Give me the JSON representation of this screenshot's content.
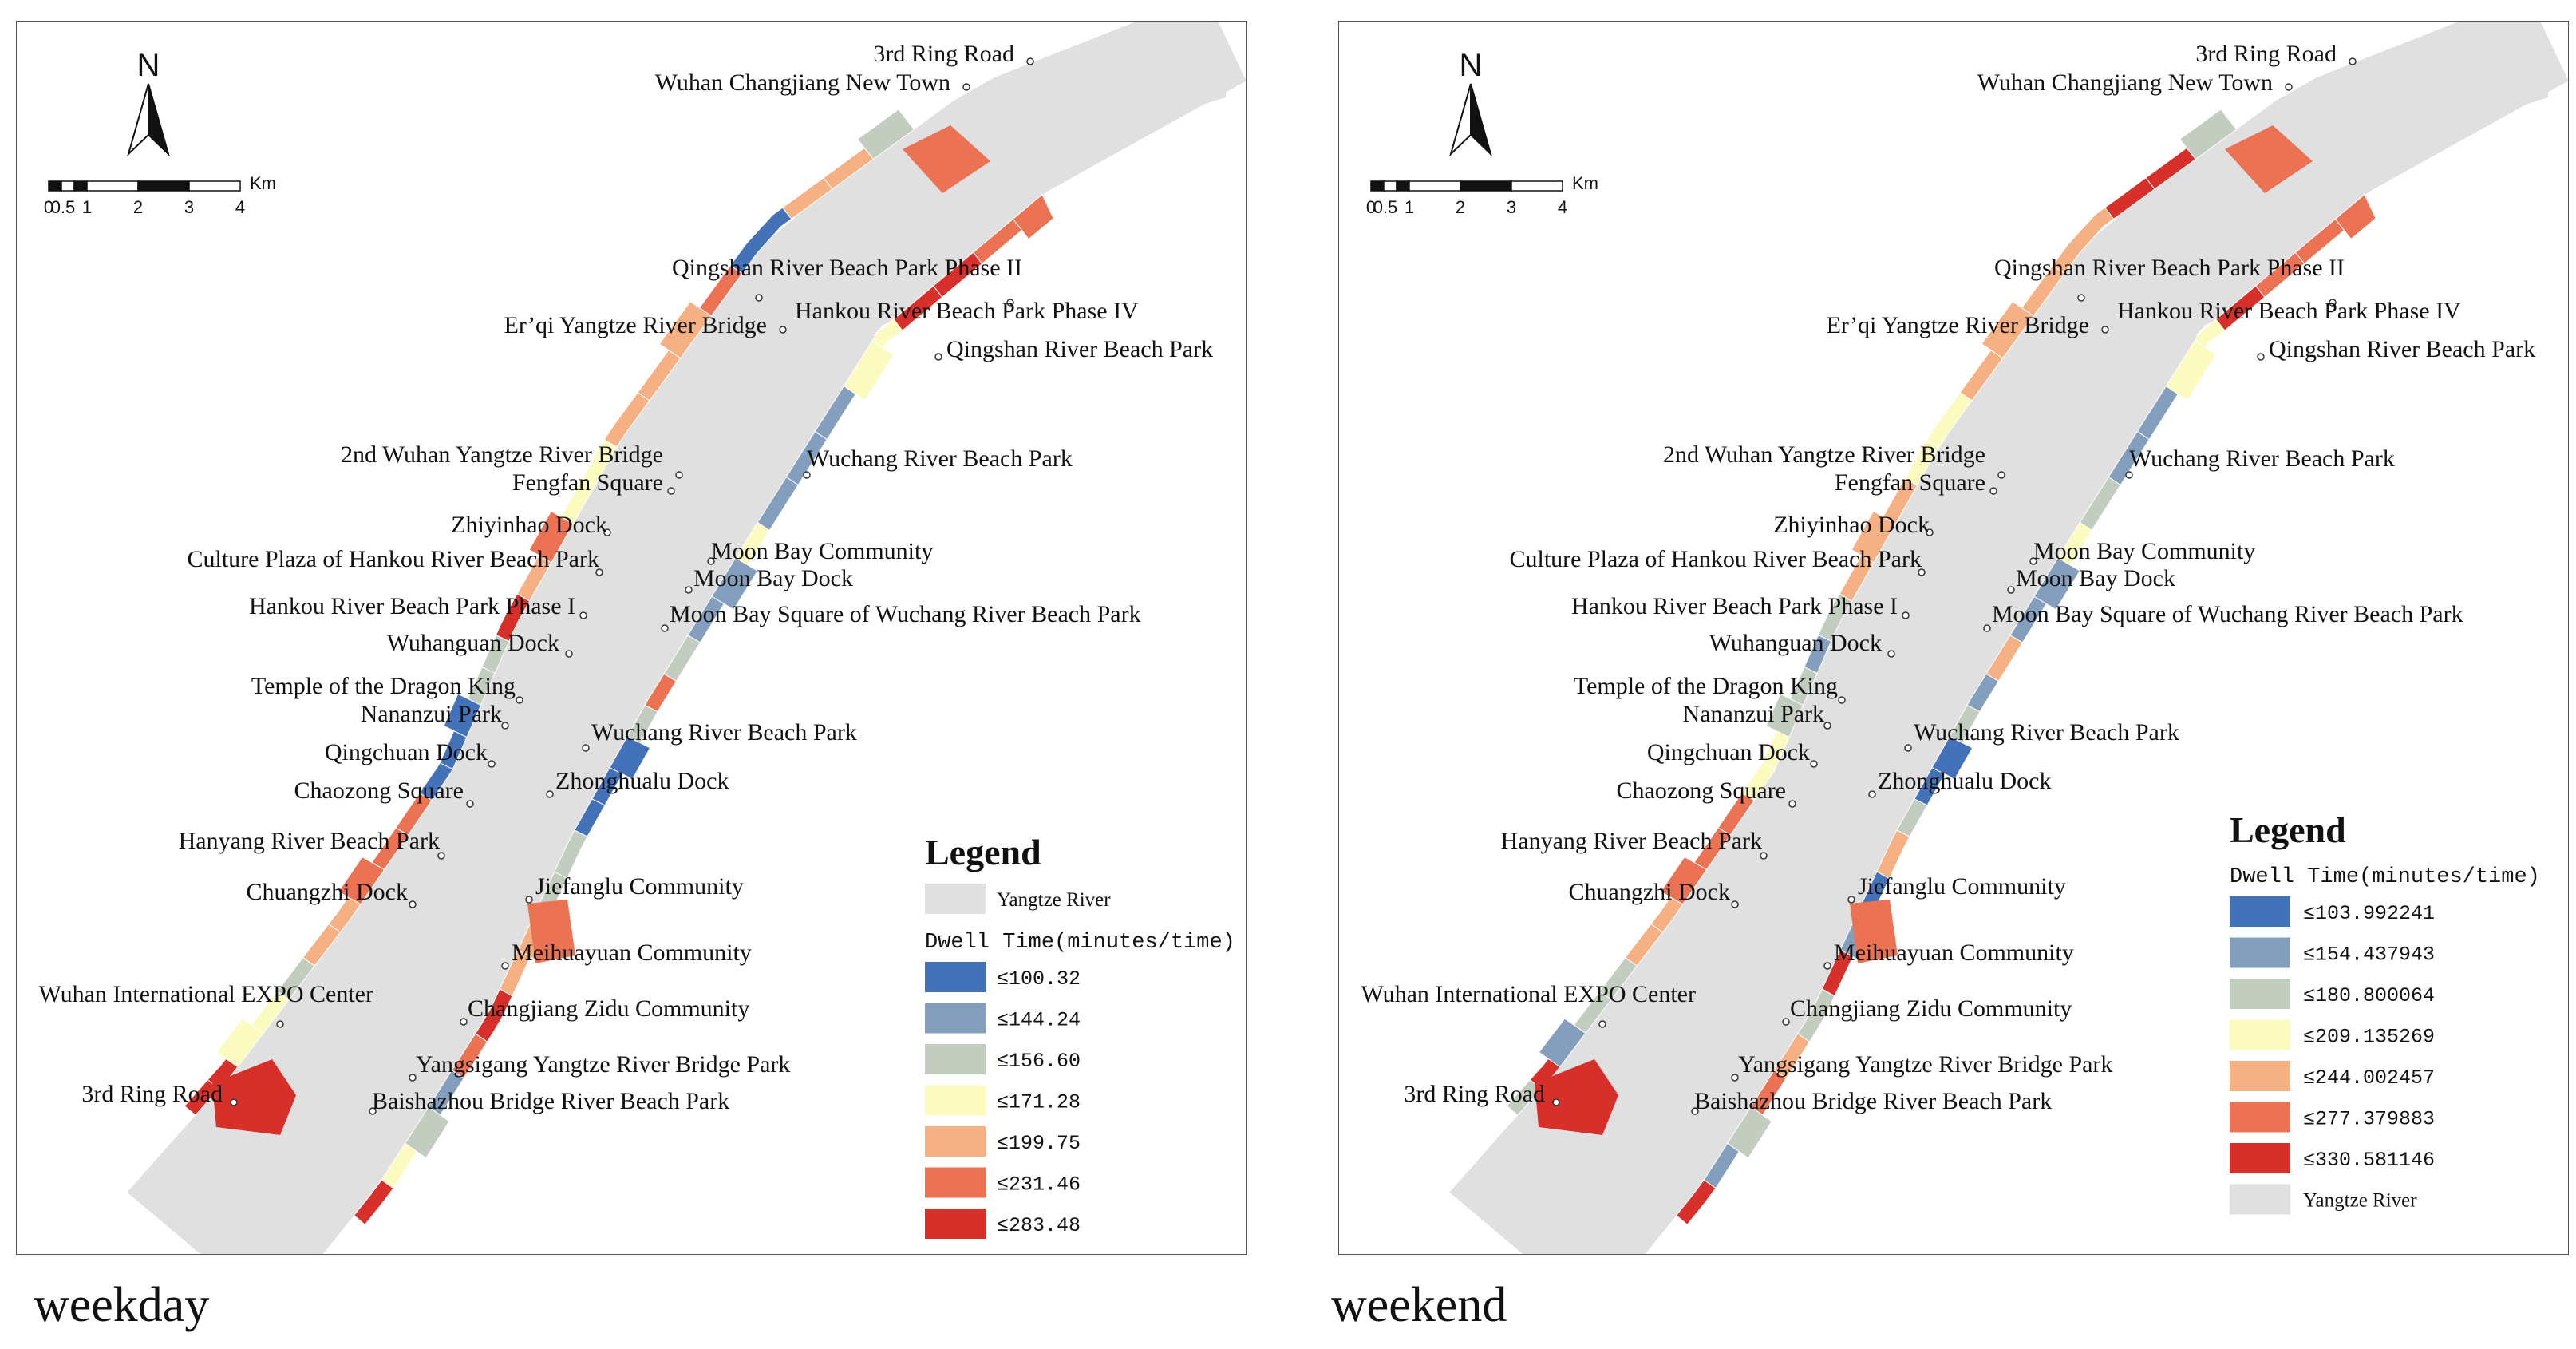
{
  "river_color": "#e0e0e0",
  "maps": [
    {
      "caption": "weekday",
      "legend": {
        "title": "Legend",
        "river_label": "Yangtze River",
        "subtitle": "Dwell Time(minutes/time)",
        "classes": [
          {
            "label": "≤100.32",
            "color": "#4472b8"
          },
          {
            "label": "≤144.24",
            "color": "#849fbd"
          },
          {
            "label": "≤156.60",
            "color": "#c2cdc0"
          },
          {
            "label": "≤171.28",
            "color": "#fbfbc0"
          },
          {
            "label": "≤199.75",
            "color": "#f5b183"
          },
          {
            "label": "≤231.46",
            "color": "#ec7254"
          },
          {
            "label": "≤283.48",
            "color": "#d7302a"
          }
        ]
      },
      "north": "N",
      "scale": {
        "labels": [
          "0",
          "0.5",
          "1",
          "2",
          "3",
          "4"
        ],
        "unit": "Km"
      },
      "places": [
        "3rd Ring Road",
        "Wuhan Changjiang New Town",
        "Qingshan River Beach Park Phase II",
        "Er’qi Yangtze River Bridge",
        "Hankou River Beach Park Phase IV",
        "Qingshan River Beach Park",
        "2nd Wuhan Yangtze River Bridge",
        "Fengfan Square",
        "Wuchang River Beach Park",
        "Zhiyinhao Dock",
        "Moon Bay Community",
        "Culture Plaza of Hankou River Beach Park",
        "Moon Bay Dock",
        "Hankou River Beach Park Phase I",
        "Moon Bay Square of Wuchang River Beach Park",
        "Wuhanguan Dock",
        "Temple of the Dragon King",
        "Nananzui Park",
        "Wuchang River Beach Park",
        "Qingchuan Dock",
        "Chaozong Square",
        "Zhonghualu Dock",
        "Hanyang River Beach Park",
        "Jiefanglu Community",
        "Chuangzhi Dock",
        "Meihuayuan Community",
        "Wuhan International EXPO Center",
        "Changjiang Zidu Community",
        "Yangsigang Yangtze River Bridge Park",
        "3rd Ring Road",
        "Baishazhou Bridge River Beach Park"
      ]
    },
    {
      "caption": "weekend",
      "legend": {
        "title": "Legend",
        "river_label": "Yangtze River",
        "subtitle": "Dwell Time(minutes/time)",
        "classes": [
          {
            "label": "≤103.992241",
            "color": "#4472b8"
          },
          {
            "label": "≤154.437943",
            "color": "#849fbd"
          },
          {
            "label": "≤180.800064",
            "color": "#c2cdc0"
          },
          {
            "label": "≤209.135269",
            "color": "#fbfbc0"
          },
          {
            "label": "≤244.002457",
            "color": "#f5b183"
          },
          {
            "label": "≤277.379883",
            "color": "#ec7254"
          },
          {
            "label": "≤330.581146",
            "color": "#d7302a"
          }
        ]
      },
      "north": "N",
      "scale": {
        "labels": [
          "0",
          "0.5",
          "1",
          "2",
          "3",
          "4"
        ],
        "unit": "Km"
      },
      "places": [
        "3rd Ring Road",
        "Wuhan Changjiang New Town",
        "Qingshan River Beach Park Phase II",
        "Er’qi Yangtze River Bridge",
        "Hankou River Beach Park Phase IV",
        "Qingshan River Beach Park",
        "2nd Wuhan Yangtze River Bridge",
        "Fengfan Square",
        "Wuchang River Beach Park",
        "Zhiyinhao Dock",
        "Moon Bay Community",
        "Culture Plaza of Hankou River Beach Park",
        "Moon Bay Dock",
        "Hankou River Beach Park Phase I",
        "Moon Bay Square of Wuchang River Beach Park",
        "Wuhanguan Dock",
        "Temple of the Dragon King",
        "Nananzui Park",
        "Wuchang River Beach Park",
        "Qingchuan Dock",
        "Chaozong Square",
        "Zhonghualu Dock",
        "Hanyang River Beach Park",
        "Jiefanglu Community",
        "Chuangzhi Dock",
        "Meihuayuan Community",
        "Wuhan International EXPO Center",
        "Changjiang Zidu Community",
        "Yangsigang Yangtze River Bridge Park",
        "3rd Ring Road",
        "Baishazhou Bridge River Beach Park"
      ],
      "segment_classes": {
        "left": [
          5,
          5,
          5,
          6,
          3,
          3,
          1,
          1,
          2,
          3,
          1,
          1,
          4,
          1,
          2,
          0,
          0,
          2,
          4,
          0,
          1,
          6,
          2,
          4,
          5,
          2,
          1,
          6
        ],
        "right": [
          2,
          6,
          6,
          4,
          4,
          4,
          4,
          3,
          3,
          4,
          4,
          4,
          2,
          1,
          2,
          2,
          3,
          3,
          5,
          5,
          5,
          4,
          4,
          2,
          2,
          1,
          6,
          2
        ]
      }
    }
  ],
  "weekday_segment_classes": {
    "left": [
      5,
      5,
      6,
      6,
      3,
      3,
      1,
      1,
      1,
      3,
      1,
      1,
      2,
      5,
      2,
      0,
      0,
      0,
      2,
      2,
      4,
      4,
      6,
      5,
      1,
      2,
      3,
      6
    ],
    "right": [
      2,
      4,
      4,
      0,
      5,
      4,
      4,
      4,
      3,
      3,
      5,
      4,
      6,
      2,
      2,
      0,
      0,
      0,
      5,
      5,
      5,
      4,
      4,
      2,
      3,
      3,
      6,
      6
    ]
  }
}
